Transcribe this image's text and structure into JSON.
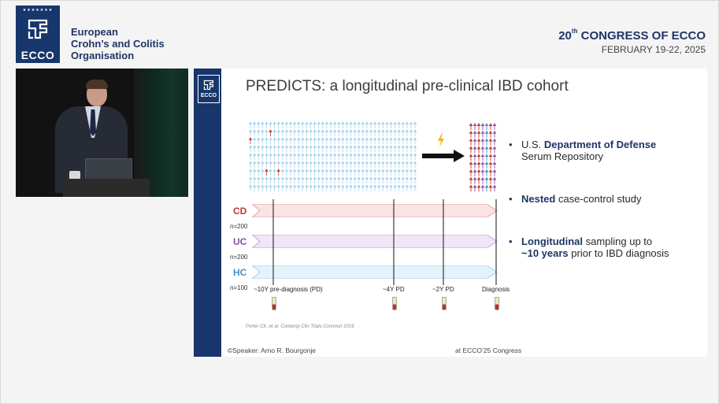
{
  "header": {
    "logo_stars": "★★★★★★★",
    "logo_text": "ECCO",
    "org_line1": "European",
    "org_line2": "Crohn’s and Colitis",
    "org_line3": "Organisation",
    "congress_ordinal": "20",
    "congress_suffix": "th",
    "congress_rest": "CONGRESS OF ECCO",
    "congress_dates": "FEBRUARY 19-22, 2025"
  },
  "slide": {
    "logo_text": "ECCO",
    "title": "PREDICTS: a longitudinal pre-clinical IBD cohort",
    "bullets": [
      {
        "pre": "U.S. ",
        "bold": "Department of Defense",
        "post": "",
        "line2": "Serum Repository"
      },
      {
        "pre": "",
        "bold": "Nested",
        "post": " case-control study",
        "line2": ""
      },
      {
        "pre": "",
        "bold": "Longitudinal",
        "post": " sampling up to",
        "line2_bold": "~10 years",
        "line2_post": " prior to IBD diagnosis"
      }
    ],
    "groups": [
      {
        "label": "CD",
        "n": "n=200",
        "color": "#c0392b",
        "fill": "#fbe3e3",
        "stroke": "#e3a3a3"
      },
      {
        "label": "UC",
        "n": "n=200",
        "color": "#8a52a8",
        "fill": "#efe6f8",
        "stroke": "#bfa6d8"
      },
      {
        "label": "HC",
        "n": "n=100",
        "color": "#4a90c8",
        "fill": "#e4f2fb",
        "stroke": "#a6cfe8"
      }
    ],
    "timeline": [
      "~10Y pre-diagnosis (PD)",
      "~4Y PD",
      "~2Y PD",
      "Diagnosis"
    ],
    "reference_prefix": "Porter CK, et al. ",
    "reference_journal": "Contemp Clin Trials Commun",
    "reference_year": " 2019",
    "speaker": "©Speaker: Arno R. Bourgonje",
    "footer_right": "at ECCO’25 Congress"
  },
  "colors": {
    "navy": "#17366b",
    "crowd_arrow": "#a8d4ec",
    "crowd_highlight": "#c0392b",
    "cd": "#c0392b",
    "uc": "#8a52a8",
    "hc": "#4a90c8"
  }
}
